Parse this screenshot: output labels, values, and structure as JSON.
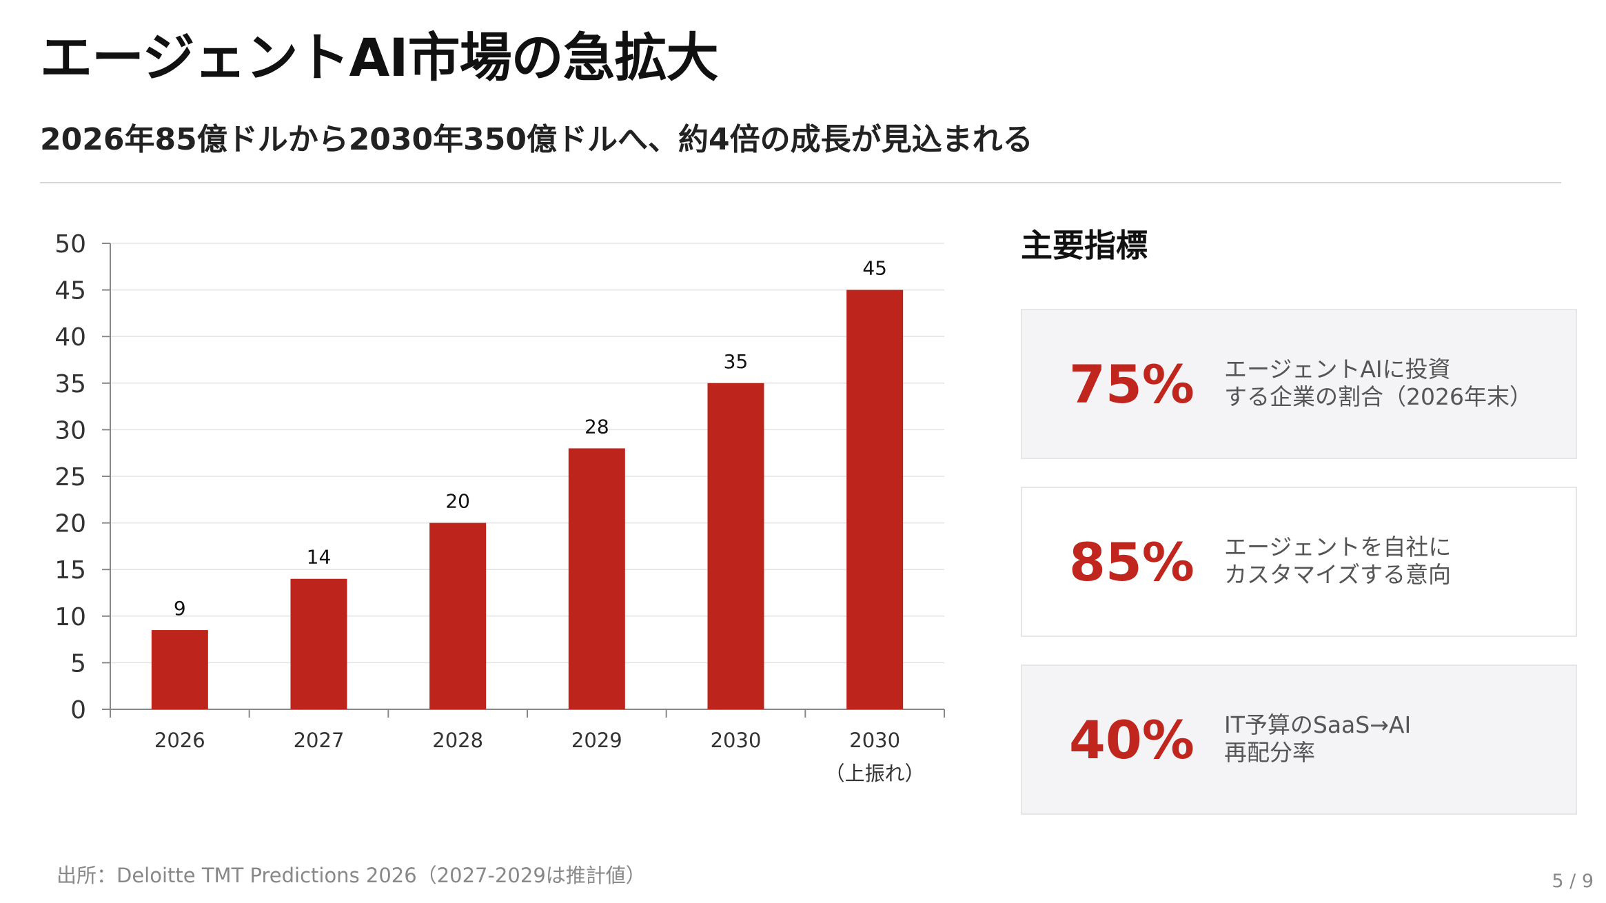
{
  "header": {
    "title": "エージェントAI市場の急拡大",
    "subtitle": "2026年85億ドルから2030年350億ドルへ、約4倍の成長が見込まれる"
  },
  "chart_data": {
    "type": "bar",
    "categories": [
      "2026",
      "2027",
      "2028",
      "2029",
      "2030",
      "2030（上振れ）"
    ],
    "category_lines": [
      [
        "2026"
      ],
      [
        "2027"
      ],
      [
        "2028"
      ],
      [
        "2029"
      ],
      [
        "2030"
      ],
      [
        "2030",
        "（上振れ）"
      ]
    ],
    "values": [
      8.5,
      14,
      20,
      28,
      35,
      45
    ],
    "data_labels": [
      "9",
      "14",
      "20",
      "28",
      "35",
      "45"
    ],
    "ylim": [
      0,
      50
    ],
    "yticks": [
      0,
      5,
      10,
      15,
      20,
      25,
      30,
      35,
      40,
      45,
      50
    ],
    "grid": true,
    "bar_color": "#bd241b",
    "title": "",
    "xlabel": "",
    "ylabel": ""
  },
  "metrics": {
    "title": "主要指標",
    "accent_color": "#c0261d",
    "cards": [
      {
        "value": "75%",
        "line1": "エージェントAIに投資",
        "line2": "する企業の割合（2026年末）",
        "bg": "#f4f4f6"
      },
      {
        "value": "85%",
        "line1": "エージェントを自社に",
        "line2": "カスタマイズする意向",
        "bg": "#ffffff"
      },
      {
        "value": "40%",
        "line1": "IT予算のSaaS→AI",
        "line2": "再配分率",
        "bg": "#f4f4f6"
      }
    ]
  },
  "footer": {
    "source": "出所：Deloitte TMT Predictions 2026（2027-2029は推計値）",
    "page": "5 / 9"
  }
}
